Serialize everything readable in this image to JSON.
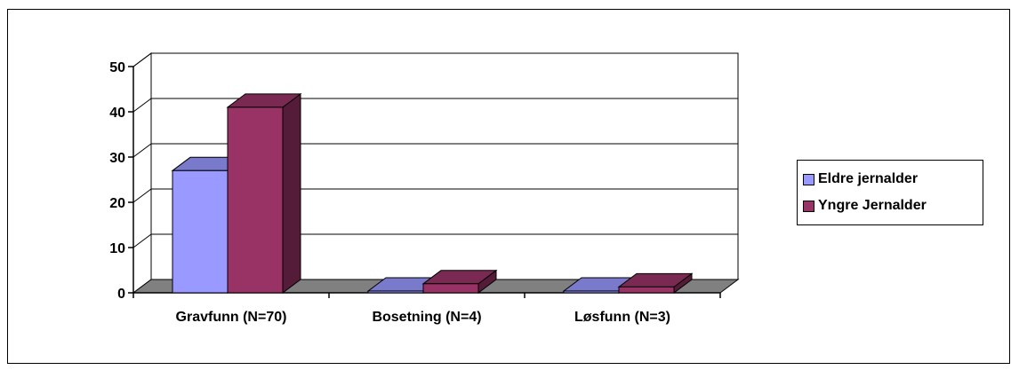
{
  "chart_data": {
    "type": "bar",
    "style": "3d-clustered",
    "categories": [
      "Gravfunn (N=70)",
      "Bosetning (N=4)",
      "Løsfunn (N=3)"
    ],
    "series": [
      {
        "name": "Eldre jernalder",
        "values": [
          27,
          0.4,
          0.4
        ],
        "color": "#9999ff"
      },
      {
        "name": "Yngre Jernalder",
        "values": [
          41,
          2,
          1.3
        ],
        "color": "#993366"
      }
    ],
    "ylim": [
      0,
      50
    ],
    "yticks": [
      "0",
      "10",
      "20",
      "30",
      "40",
      "50"
    ],
    "grid": true,
    "legend": "right",
    "floor_color": "#808080"
  }
}
